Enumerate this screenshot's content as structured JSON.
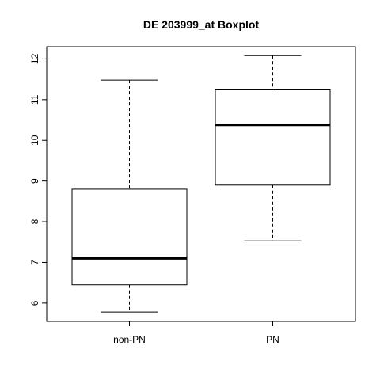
{
  "chart_data": {
    "type": "boxplot",
    "title": "DE 203999_at Boxplot",
    "xlabel": "",
    "ylabel": "",
    "ylim": [
      5.55,
      12.3
    ],
    "yticks": [
      "6",
      "7",
      "8",
      "9",
      "10",
      "11",
      "12"
    ],
    "categories": [
      "non-PN",
      "PN"
    ],
    "boxes": [
      {
        "category": "non-PN",
        "min": 5.78,
        "q1": 6.45,
        "median": 7.1,
        "q3": 8.8,
        "max": 11.48
      },
      {
        "category": "PN",
        "min": 7.53,
        "q1": 8.9,
        "median": 10.38,
        "q3": 11.24,
        "max": 12.08
      }
    ],
    "grid": false,
    "legend": "none"
  }
}
